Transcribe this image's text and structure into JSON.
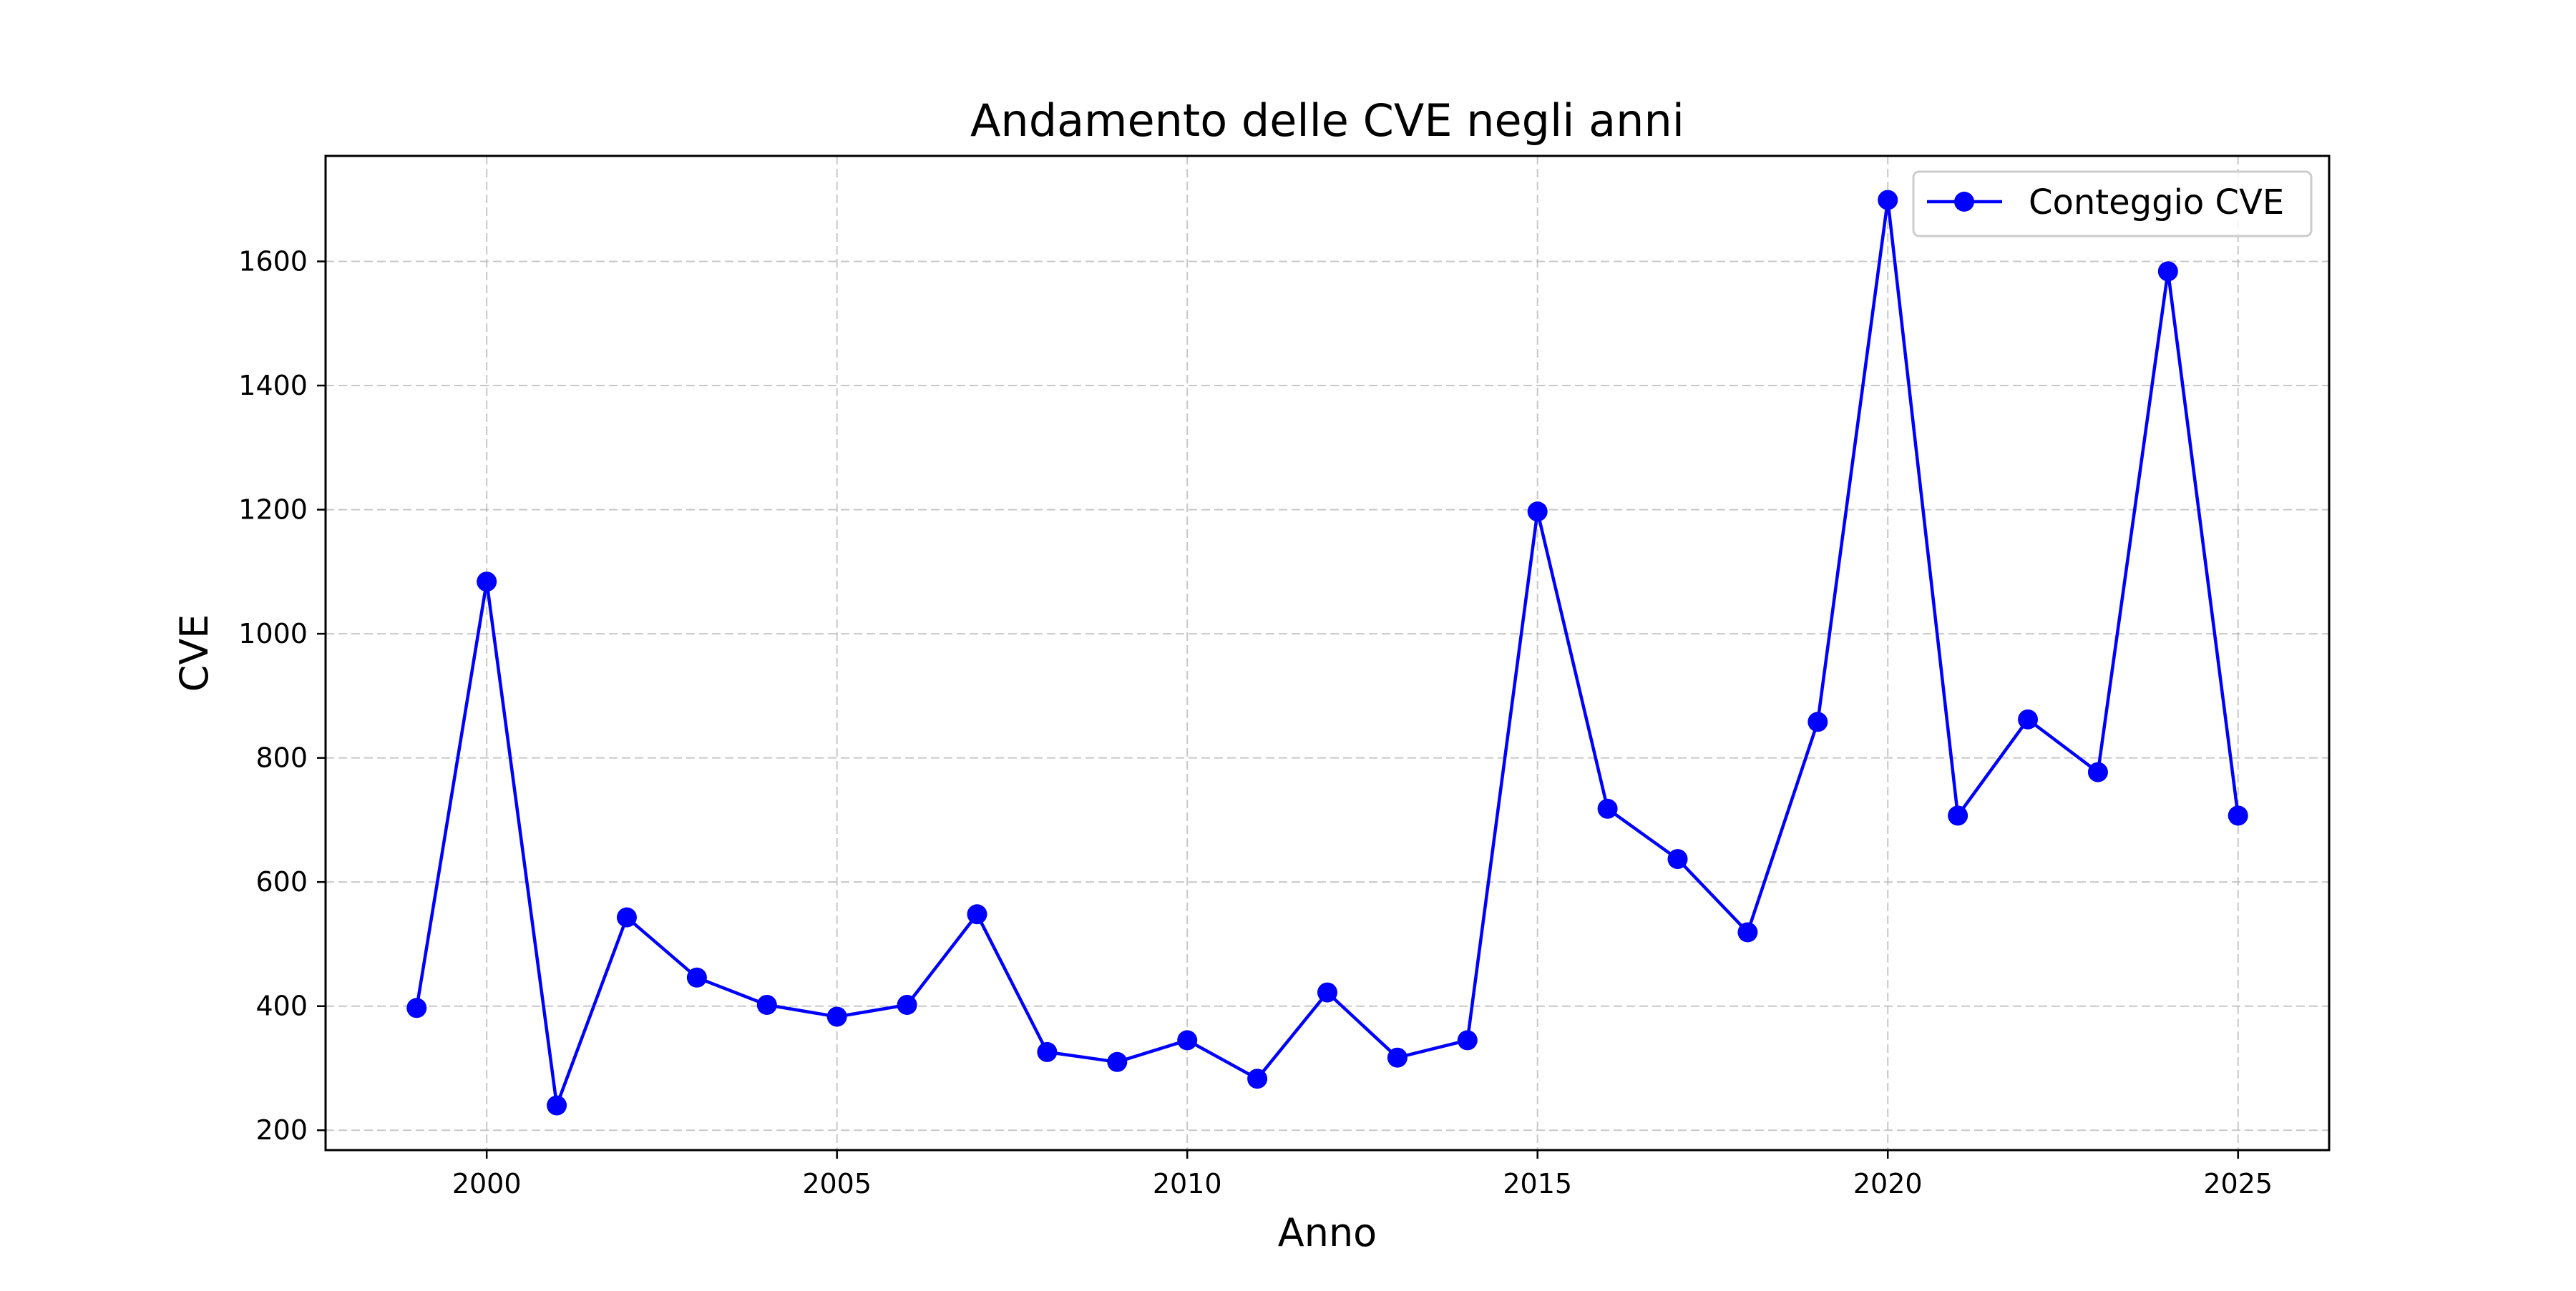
{
  "chart_data": {
    "type": "line",
    "title": "Andamento delle CVE negli anni",
    "xlabel": "Anno",
    "ylabel": "CVE",
    "x": [
      1999,
      2000,
      2001,
      2002,
      2003,
      2004,
      2005,
      2006,
      2007,
      2008,
      2009,
      2010,
      2011,
      2012,
      2013,
      2014,
      2015,
      2016,
      2017,
      2018,
      2019,
      2020,
      2021,
      2022,
      2023,
      2024,
      2025
    ],
    "series": [
      {
        "name": "Conteggio CVE",
        "color": "#0000ff",
        "marker": "circle",
        "values": [
          397,
          1084,
          240,
          543,
          446,
          402,
          383,
          402,
          548,
          326,
          310,
          345,
          283,
          422,
          317,
          345,
          1197,
          718,
          637,
          519,
          858,
          1699,
          707,
          862,
          777,
          1584,
          707
        ]
      }
    ],
    "xlim": [
      1997.7,
      2026.3
    ],
    "ylim": [
      168,
      1770
    ],
    "xticks": [
      2000,
      2005,
      2010,
      2015,
      2020,
      2025
    ],
    "xtick_labels": [
      "2000",
      "2005",
      "2010",
      "2015",
      "2020",
      "2025"
    ],
    "yticks": [
      200,
      400,
      600,
      800,
      1000,
      1200,
      1400,
      1600
    ],
    "ytick_labels": [
      "200",
      "400",
      "600",
      "800",
      "1000",
      "1200",
      "1400",
      "1600"
    ],
    "grid": true,
    "grid_style": "dashed",
    "legend_position": "top-right"
  }
}
